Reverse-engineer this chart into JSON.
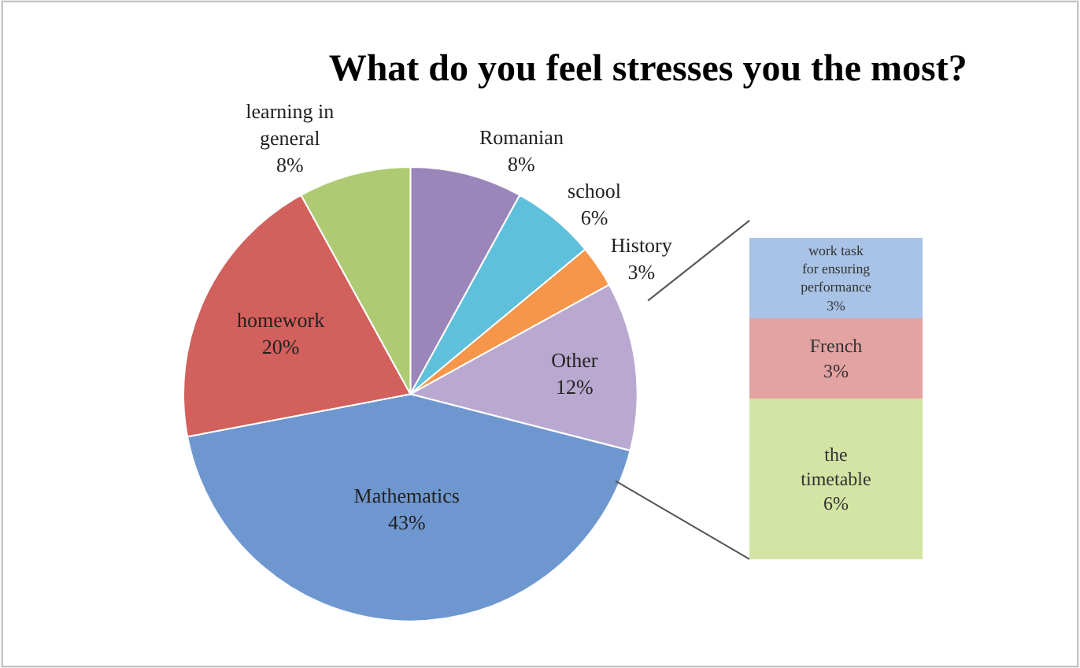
{
  "chart_data": [
    {
      "type": "pie",
      "title": "What do you feel stresses you the most?",
      "categories": [
        "Romanian",
        "school",
        "History",
        "Other",
        "Mathematics",
        "homework",
        "learning in general"
      ],
      "values": [
        8,
        6,
        3,
        12,
        43,
        20,
        8
      ],
      "value_labels": [
        "8%",
        "6%",
        "3%",
        "12%",
        "43%",
        "20%",
        "8%"
      ],
      "colors": [
        "#9b86ba",
        "#5fc0dc",
        "#f5964a",
        "#b9a9d0",
        "#6f97cf",
        "#d2605c",
        "#aecb74"
      ],
      "legend": false
    },
    {
      "type": "bar",
      "stacked": true,
      "categories": [
        null
      ],
      "series": [
        {
          "name": "the timetable",
          "color": "#d3e4a4",
          "values": [
            6
          ],
          "value_labels": [
            "6%"
          ]
        },
        {
          "name": "French",
          "color": "#e3a3a2",
          "values": [
            3
          ],
          "value_labels": [
            "3%"
          ]
        },
        {
          "name": "work task for ensuring performance",
          "color": "#a8c3e6",
          "values": [
            3
          ],
          "value_labels": [
            "3%"
          ]
        }
      ],
      "legend": false
    }
  ]
}
